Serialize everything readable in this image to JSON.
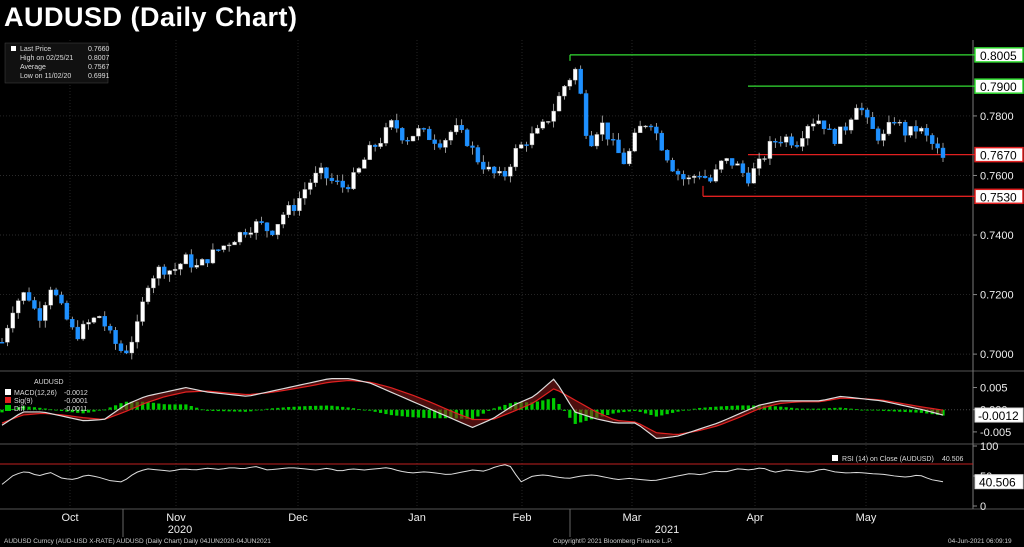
{
  "title": "AUDUSD (Daily Chart)",
  "info_box": {
    "rows": [
      {
        "label": "Last Price",
        "value": "0.7660"
      },
      {
        "label": "High on 02/25/21",
        "value": "0.8007"
      },
      {
        "label": "Average",
        "value": "0.7567"
      },
      {
        "label": "Low on 11/02/20",
        "value": "0.6991"
      }
    ]
  },
  "colors": {
    "up": "#ffffff",
    "down": "#1e90ff",
    "resistance": "#33dd33",
    "support": "#e02020",
    "macd": "#ffffff",
    "signal": "#e02020",
    "diff": "#00cc00"
  },
  "chart_data": [
    {
      "type": "candlestick",
      "title": "AUDUSD (Daily Chart)",
      "ylim": [
        0.695,
        0.8055
      ],
      "y_ticks": [
        "0.7000",
        "0.7200",
        "0.7400",
        "0.7600",
        "0.7800"
      ],
      "x_months": [
        "Oct",
        "Nov",
        "Dec",
        "Jan",
        "Feb",
        "Mar",
        "Apr",
        "May"
      ],
      "x_years": [
        "2020",
        "2021"
      ],
      "series": [
        {
          "name": "AUDUSD",
          "x_range": [
            "2020-09-22",
            "2021-06-04"
          ],
          "close_path": [
            0.704,
            0.717,
            0.721,
            0.712,
            0.723,
            0.714,
            0.706,
            0.71,
            0.713,
            0.705,
            0.7,
            0.708,
            0.725,
            0.729,
            0.728,
            0.732,
            0.729,
            0.733,
            0.736,
            0.739,
            0.742,
            0.744,
            0.741,
            0.747,
            0.75,
            0.757,
            0.761,
            0.758,
            0.756,
            0.76,
            0.768,
            0.772,
            0.778,
            0.772,
            0.775,
            0.773,
            0.771,
            0.776,
            0.772,
            0.765,
            0.761,
            0.759,
            0.768,
            0.772,
            0.775,
            0.781,
            0.79,
            0.796,
            0.77,
            0.778,
            0.77,
            0.764,
            0.775,
            0.779,
            0.77,
            0.762,
            0.758,
            0.761,
            0.758,
            0.765,
            0.764,
            0.759,
            0.764,
            0.771,
            0.773,
            0.771,
            0.778,
            0.779,
            0.772,
            0.776,
            0.785,
            0.776,
            0.772,
            0.779,
            0.774,
            0.776,
            0.771,
            0.766
          ]
        }
      ],
      "resistance_levels": [
        "0.8005",
        "0.7900"
      ],
      "support_levels": [
        "0.7670",
        "0.7530"
      ]
    },
    {
      "type": "line",
      "title": "AUDUSD",
      "series": [
        {
          "name": "MACD(12,26)",
          "value": "-0.0012"
        },
        {
          "name": "Sig(9)",
          "value": "-0.0001"
        },
        {
          "name": "Diff",
          "value": "-0.0011"
        }
      ],
      "y_ticks": [
        "0.005",
        "0.000",
        "-0.005"
      ],
      "ylim": [
        -0.0075,
        0.0085
      ],
      "last_value": "-0.0012",
      "macd_path": [
        -0.0035,
        -0.0005,
        -0.0005,
        -0.0015,
        -0.0025,
        -0.0022,
        0.001,
        0.003,
        0.004,
        0.005,
        0.004,
        0.0035,
        0.003,
        0.004,
        0.005,
        0.006,
        0.007,
        0.007,
        0.006,
        0.004,
        0.002,
        0.0,
        -0.002,
        -0.004,
        -0.002,
        0.001,
        0.003,
        0.007,
        -0.0005,
        -0.002,
        -0.003,
        -0.003,
        -0.0065,
        -0.006,
        -0.0045,
        -0.003,
        -0.001,
        0.001,
        0.002,
        0.002,
        0.002,
        0.003,
        0.0025,
        0.002,
        0.001,
        0.0,
        -0.0012
      ],
      "signal_path": [
        -0.003,
        -0.0012,
        -0.0008,
        -0.0012,
        -0.0018,
        -0.0022,
        -0.0005,
        0.0015,
        0.003,
        0.004,
        0.0042,
        0.0038,
        0.0034,
        0.0038,
        0.0045,
        0.0053,
        0.0062,
        0.0066,
        0.0062,
        0.005,
        0.0034,
        0.0016,
        -0.0004,
        -0.0022,
        -0.0022,
        -0.0004,
        0.0016,
        0.0048,
        0.0022,
        -0.0004,
        -0.0024,
        -0.0028,
        -0.0052,
        -0.0056,
        -0.0048,
        -0.0036,
        -0.0018,
        0.0002,
        0.0014,
        0.0018,
        0.0018,
        0.0026,
        0.0025,
        0.0022,
        0.0014,
        0.0006,
        -0.0001
      ]
    },
    {
      "type": "line",
      "title": "RSI (14)",
      "series": [
        {
          "name": "RSI (14)  on Close (AUDUSD)",
          "value": "40.506"
        }
      ],
      "y_ticks": [
        "100",
        "50",
        "0"
      ],
      "ylim": [
        0,
        100
      ],
      "overbought": 70,
      "last_value": "40.506",
      "rsi_path": [
        36,
        52,
        58,
        50,
        56,
        46,
        44,
        52,
        48,
        42,
        40,
        55,
        62,
        60,
        58,
        62,
        60,
        63,
        61,
        64,
        62,
        66,
        60,
        62,
        64,
        62,
        60,
        63,
        58,
        62,
        60,
        62,
        64,
        58,
        55,
        57,
        55,
        52,
        56,
        60,
        58,
        66,
        70,
        40,
        50,
        52,
        48,
        46,
        50,
        52,
        48,
        44,
        46,
        44,
        42,
        46,
        50,
        54,
        52,
        58,
        57,
        62,
        60,
        64,
        56,
        60,
        58,
        56,
        62,
        57,
        55,
        56,
        54,
        53,
        50,
        48,
        52,
        44,
        40.5
      ]
    }
  ],
  "x_axis": {
    "months": [
      "Oct",
      "Nov",
      "Dec",
      "Jan",
      "Feb",
      "Mar",
      "Apr",
      "May"
    ],
    "years": [
      "2020",
      "2021"
    ]
  },
  "footer": {
    "left": "AUDUSD Curncy (AUD-USD X-RATE) AUDUSD (Daily Chart)  Daily 04JUN2020-04JUN2021",
    "center": "Copyright© 2021 Bloomberg Finance L.P.",
    "right": "04-Jun-2021 06:09:19"
  }
}
